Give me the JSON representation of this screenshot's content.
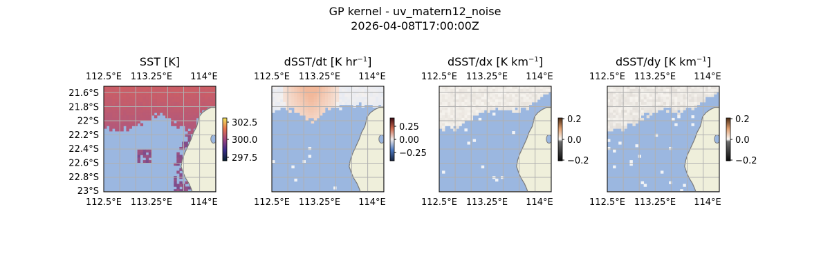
{
  "figure": {
    "title_line1": "GP kernel - uv_matern12_noise",
    "title_line2": "2026-04-08T17:00:00Z"
  },
  "axes_ticks": {
    "lon_labels": [
      "112.5°E",
      "113.25°E",
      "114°E"
    ],
    "lat_labels": [
      "21.6°S",
      "21.8°S",
      "22°S",
      "22.2°S",
      "22.4°S",
      "22.6°S",
      "22.8°S",
      "23°S"
    ]
  },
  "chart_data": [
    {
      "type": "heatmap",
      "id": "sst",
      "title": "SST [K]",
      "xlabel": "",
      "ylabel": "",
      "xlim_lon": [
        112.5,
        114.0
      ],
      "ylim_lat": [
        -23.0,
        -21.5
      ],
      "show_lat_labels": true,
      "colorbar": {
        "ticks": [
          "302.5",
          "300.0",
          "297.5"
        ],
        "range": [
          297.0,
          303.0
        ],
        "colormap": "thermal"
      },
      "field_description": "warm SST (~302-303 K) in northern half, land coast on east",
      "colors": {
        "high": "#cf5f63",
        "mid": "#b0587c",
        "low": "#7a4b8c"
      }
    },
    {
      "type": "heatmap",
      "id": "dsst_dt",
      "title": "dSST/dt [K hr⁻¹]",
      "title_base": "dSST/dt [K hr",
      "title_sup": "−1",
      "title_end": "]",
      "xlabel": "",
      "ylabel": "",
      "xlim_lon": [
        112.5,
        114.0
      ],
      "ylim_lat": [
        -23.0,
        -21.5
      ],
      "show_lat_labels": false,
      "colorbar": {
        "ticks": [
          "0.25",
          "0.00",
          "−0.25"
        ],
        "range": [
          -0.35,
          0.35
        ],
        "colormap": "balance"
      }
    },
    {
      "type": "heatmap",
      "id": "dsst_dx",
      "title_base": "dSST/dx [K km",
      "title_sup": "−1",
      "title_end": "]",
      "xlabel": "",
      "ylabel": "",
      "xlim_lon": [
        112.5,
        114.0
      ],
      "ylim_lat": [
        -23.0,
        -21.5
      ],
      "show_lat_labels": false,
      "colorbar": {
        "ticks": [
          "0.2",
          "0.0",
          "−0.2"
        ],
        "range": [
          -0.2,
          0.2
        ],
        "colormap": "gray-copper"
      }
    },
    {
      "type": "heatmap",
      "id": "dsst_dy",
      "title_base": "dSST/dy [K km",
      "title_sup": "−1",
      "title_end": "]",
      "xlabel": "",
      "ylabel": "",
      "xlim_lon": [
        112.5,
        114.0
      ],
      "ylim_lat": [
        -23.0,
        -21.5
      ],
      "show_lat_labels": false,
      "colorbar": {
        "ticks": [
          "0.2",
          "0.0",
          "−0.2"
        ],
        "range": [
          -0.2,
          0.2
        ],
        "colormap": "gray-copper"
      }
    }
  ],
  "colors": {
    "ocean_masked": "#9bb7e0",
    "land": "#efefdb",
    "coastline": "#7a7a7a",
    "grid": "#b0b0b0"
  }
}
